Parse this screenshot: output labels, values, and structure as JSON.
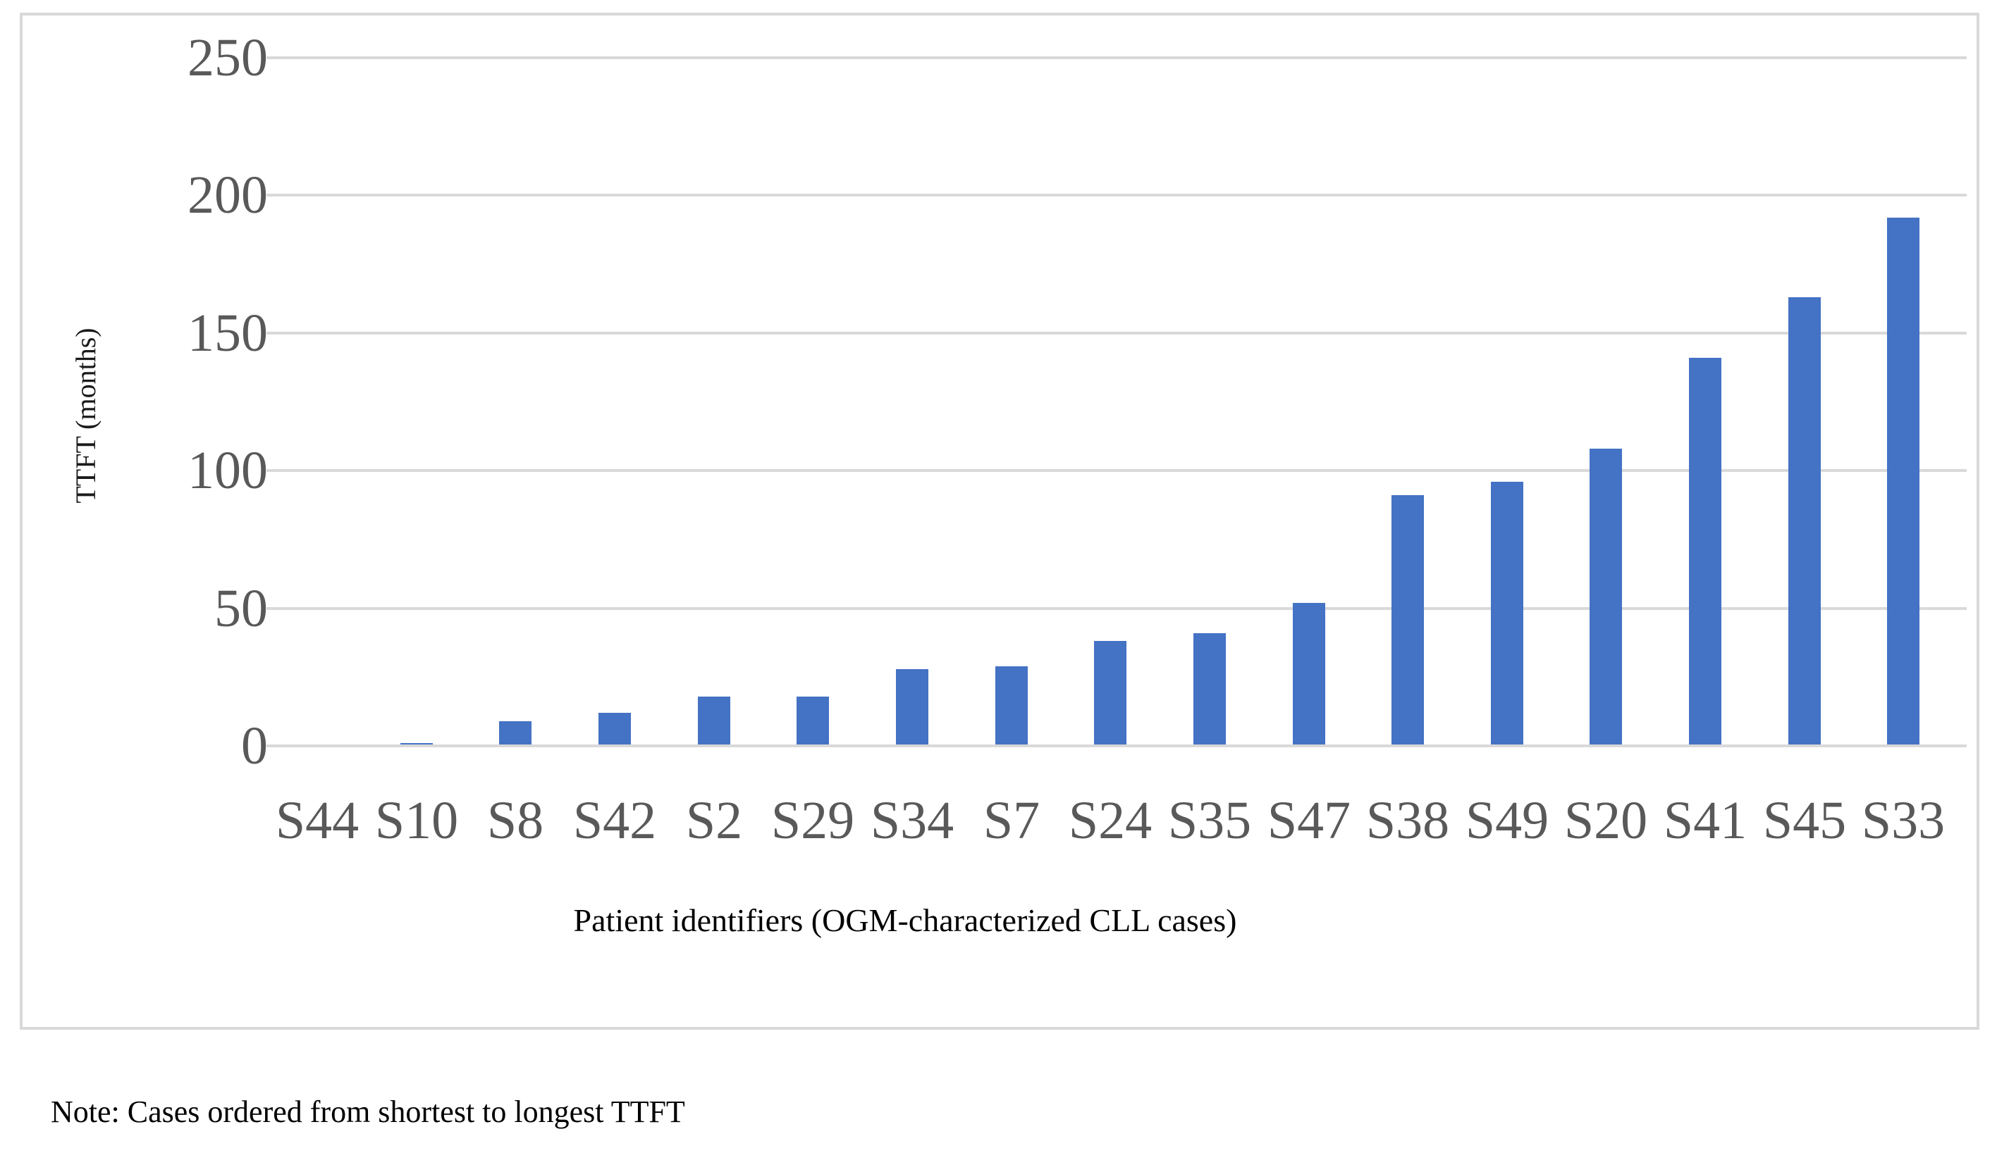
{
  "figure": {
    "note": "Note: Cases ordered from shortest to longest TTFT"
  },
  "chart_data": {
    "type": "bar",
    "title": "",
    "categories": [
      "S44",
      "S10",
      "S8",
      "S42",
      "S2",
      "S29",
      "S34",
      "S7",
      "S24",
      "S35",
      "S47",
      "S38",
      "S49",
      "S20",
      "S41",
      "S45",
      "S33"
    ],
    "values": [
      0,
      1,
      9,
      12,
      18,
      18,
      28,
      29,
      38,
      41,
      52,
      91,
      96,
      108,
      141,
      163,
      192
    ],
    "xlabel": "Patient identifiers (OGM-characterized CLL cases)",
    "ylabel": "TTFT (months)",
    "ylim": [
      0,
      250
    ],
    "yticks": [
      0,
      50,
      100,
      150,
      200,
      250
    ],
    "grid": true,
    "legend": "none",
    "bar_color": "#4472C4",
    "gridline_color": "#D9D9D9",
    "border_color": "#D9D9D9",
    "tick_label_color": "#595959",
    "sort_order": "ascending"
  }
}
